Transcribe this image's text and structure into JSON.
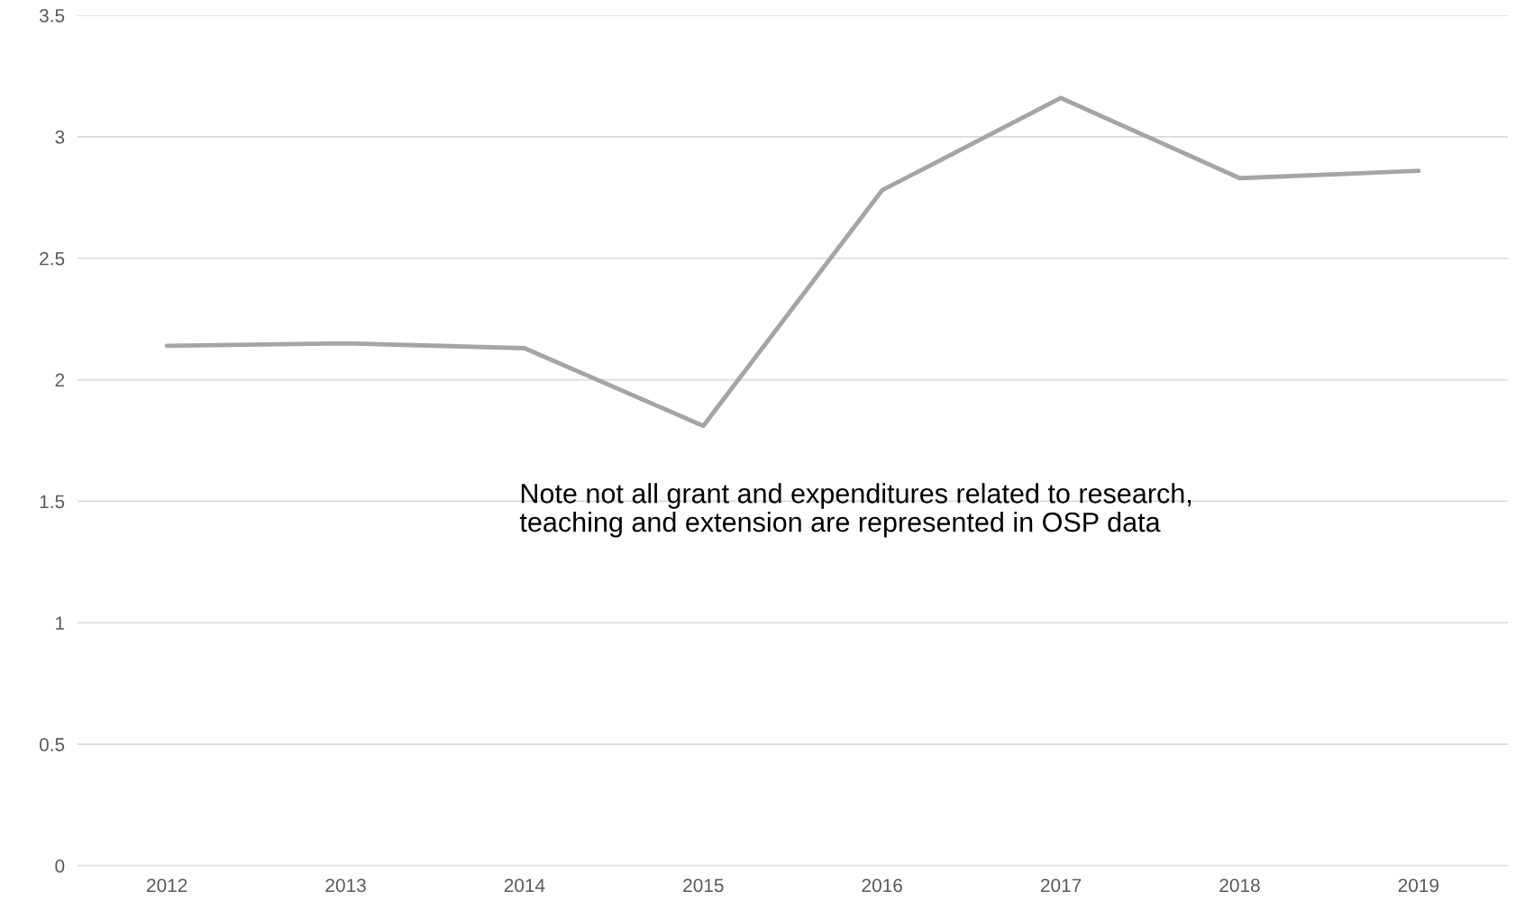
{
  "chart_data": {
    "type": "line",
    "categories": [
      "2012",
      "2013",
      "2014",
      "2015",
      "2016",
      "2017",
      "2018",
      "2019"
    ],
    "series": [
      {
        "color": "#a5a5a5",
        "values": [
          2.14,
          2.15,
          2.13,
          1.81,
          2.78,
          3.16,
          2.83,
          2.86
        ]
      }
    ],
    "ylim": [
      0,
      3.5
    ],
    "yticks": [
      0,
      0.5,
      1,
      1.5,
      2,
      2.5,
      3,
      3.5
    ],
    "grid": "y",
    "marker": "none",
    "line_style": "solid",
    "annotations": [
      "Note not all grant and expenditures related to research,\nteaching and extension are represented in OSP data"
    ]
  }
}
